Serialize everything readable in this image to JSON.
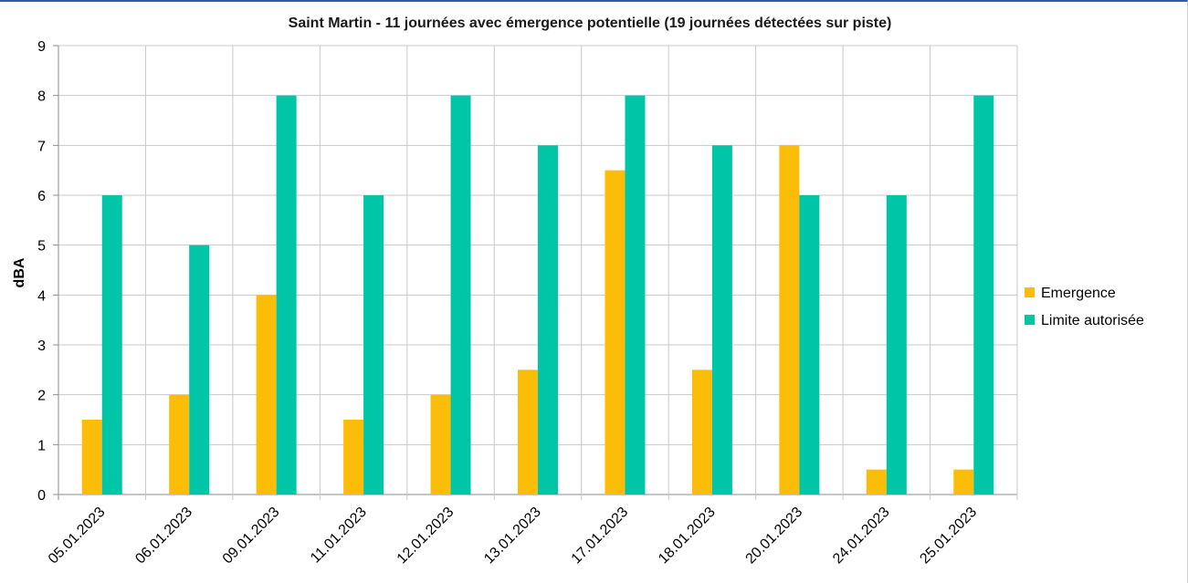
{
  "chart_data": {
    "type": "bar",
    "title": "Saint Martin - 11 journées avec émergence potentielle (19 journées détectées sur piste)",
    "xlabel": "",
    "ylabel": "dBA",
    "ylim": [
      0,
      9
    ],
    "yticks": [
      "0",
      "1",
      "2",
      "3",
      "4",
      "5",
      "6",
      "7",
      "8",
      "9"
    ],
    "grid": true,
    "legend_position": "right",
    "categories": [
      "05.01.2023",
      "06.01.2023",
      "09.01.2023",
      "11.01.2023",
      "12.01.2023",
      "13.01.2023",
      "17.01.2023",
      "18.01.2023",
      "20.01.2023",
      "24.01.2023",
      "25.01.2023"
    ],
    "series": [
      {
        "name": "Emergence",
        "color": "#fbbd08",
        "values": [
          1.5,
          2,
          4,
          1.5,
          2,
          2.5,
          6.5,
          2.5,
          7,
          0.5,
          0.5
        ]
      },
      {
        "name": "Limite autorisée",
        "color": "#00c6a8",
        "values": [
          6,
          5,
          8,
          6,
          8,
          7,
          8,
          7,
          6,
          6,
          8
        ]
      }
    ]
  }
}
